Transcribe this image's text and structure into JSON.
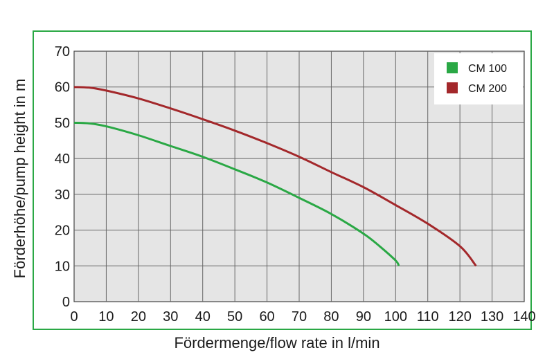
{
  "chart_data": {
    "type": "line",
    "title": "",
    "xlabel": "Fördermenge/flow rate in l/min",
    "ylabel": "Förderhöhe/pump height in m",
    "xlim": [
      0,
      140
    ],
    "ylim": [
      0,
      70
    ],
    "xticks": [
      0,
      10,
      20,
      30,
      40,
      50,
      60,
      70,
      80,
      90,
      100,
      110,
      120,
      130,
      140
    ],
    "yticks": [
      0,
      10,
      20,
      30,
      40,
      50,
      60,
      70
    ],
    "grid": true,
    "legend_position": "top-right",
    "series": [
      {
        "name": "CM 100",
        "color": "#2aa845",
        "x": [
          0,
          5,
          10,
          20,
          30,
          40,
          50,
          60,
          70,
          80,
          90,
          95,
          100,
          101
        ],
        "y": [
          50,
          49.8,
          49,
          46.5,
          43.5,
          40.5,
          37,
          33.3,
          29,
          24.5,
          19,
          15.5,
          11.5,
          10
        ]
      },
      {
        "name": "CM 200",
        "color": "#a3282b",
        "x": [
          0,
          5,
          10,
          20,
          30,
          40,
          50,
          60,
          70,
          80,
          90,
          100,
          110,
          120,
          125
        ],
        "y": [
          60,
          59.8,
          59,
          56.8,
          54,
          51,
          47.8,
          44.3,
          40.5,
          36.2,
          32,
          27,
          21.8,
          15.5,
          10
        ]
      }
    ]
  }
}
